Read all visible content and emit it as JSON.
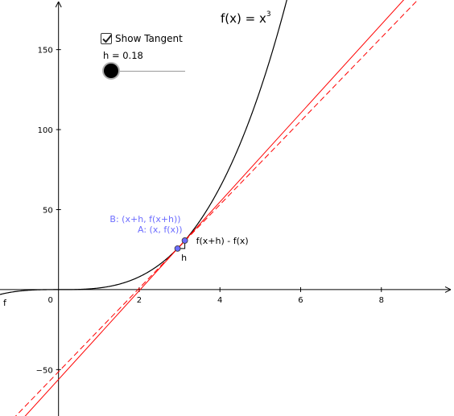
{
  "controls": {
    "show_tangent": {
      "label": "Show Tangent",
      "checked": true
    },
    "slider": {
      "label": "h = 0.18",
      "value": 0.18,
      "min": 0,
      "max": 4
    }
  },
  "function_label": {
    "lhs": "f(x)",
    "eq": "=",
    "base": "x",
    "exponent": "3"
  },
  "curve_label": "f",
  "points": {
    "A": {
      "label": "A: (x, f(x))",
      "x": 2.95
    },
    "B": {
      "label": "B: (x+h, f(x+h))",
      "x": 3.13
    }
  },
  "annotations": {
    "rise": "f(x+h) - f(x)",
    "run": "h"
  },
  "colors": {
    "curve": "#000000",
    "tangent": "#ff0000",
    "secant": "#ff0000",
    "point_fill": "#6d6dff",
    "point_label": "#6d6dff",
    "axis": "#000000"
  },
  "chart_data": {
    "type": "line",
    "function": "x^3",
    "xlim": [
      -1.45,
      9.8
    ],
    "ylim": [
      -79,
      181
    ],
    "x_ticks": [
      {
        "value": 2,
        "label": "2"
      },
      {
        "value": 4,
        "label": "4"
      },
      {
        "value": 6,
        "label": "6"
      },
      {
        "value": 8,
        "label": "8"
      }
    ],
    "y_ticks": [
      {
        "value": 150,
        "label": "150"
      },
      {
        "value": 100,
        "label": "100"
      },
      {
        "value": 50,
        "label": "50"
      },
      {
        "value": -50,
        "label": "−50"
      }
    ],
    "origin_label": "0",
    "grid": false
  }
}
